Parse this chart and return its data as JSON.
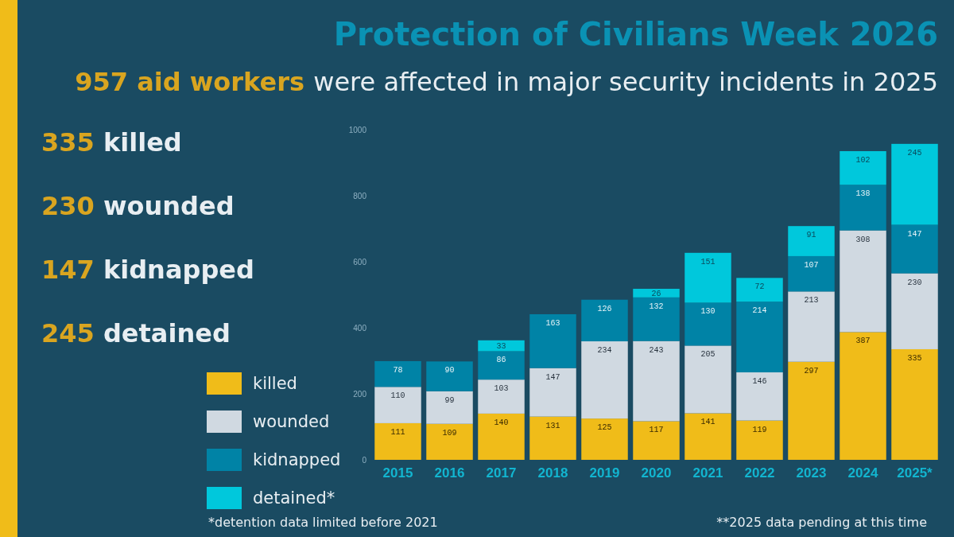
{
  "chart_data": {
    "type": "bar",
    "stacked": true,
    "title": "Protection of Civilians Week 2026",
    "subtitle": "957 aid workers were affected in major security incidents in 2025",
    "categories": [
      "2015",
      "2016",
      "2017",
      "2018",
      "2019",
      "2020",
      "2021",
      "2022",
      "2023",
      "2024",
      "2025*"
    ],
    "series": [
      {
        "name": "killed",
        "color": "#f0bc19",
        "values": [
          111,
          109,
          140,
          131,
          125,
          117,
          141,
          119,
          297,
          387,
          335
        ],
        "value_labels": [
          "111",
          "109",
          "140",
          "131",
          "125",
          "117",
          "141",
          "119",
          "297",
          "387",
          "335"
        ]
      },
      {
        "name": "wounded",
        "color": "#d0d9e1",
        "values": [
          110,
          99,
          103,
          147,
          234,
          243,
          205,
          146,
          213,
          308,
          230
        ],
        "value_labels": [
          "110",
          "99",
          "103",
          "147",
          "234",
          "243",
          "205",
          "146",
          "213",
          "308",
          "230"
        ]
      },
      {
        "name": "kidnapped",
        "color": "#0083a6",
        "values": [
          78,
          90,
          86,
          163,
          126,
          132,
          130,
          214,
          107,
          138,
          147
        ],
        "value_labels": [
          "78",
          "90",
          "86",
          "163",
          "126",
          "132",
          "130",
          "214",
          "107",
          "138",
          "147"
        ]
      },
      {
        "name": "detained*",
        "color": "#00c8dc",
        "values": [
          null,
          null,
          33,
          null,
          null,
          26,
          151,
          72,
          91,
          102,
          245
        ],
        "value_labels": [
          null,
          null,
          "33",
          null,
          null,
          "26",
          "151",
          "72",
          "91",
          "102",
          "245"
        ]
      }
    ],
    "ylim": [
      0,
      1000
    ],
    "yticks": [
      0,
      200,
      400,
      600,
      800,
      1000
    ],
    "grid": false,
    "legend": "bottom left",
    "annotations": [
      "335 killed",
      "230 wounded",
      "147 kidnapped",
      "245 detained",
      "*detention data limited before 2021",
      "**2025 data pending at this time"
    ]
  }
}
